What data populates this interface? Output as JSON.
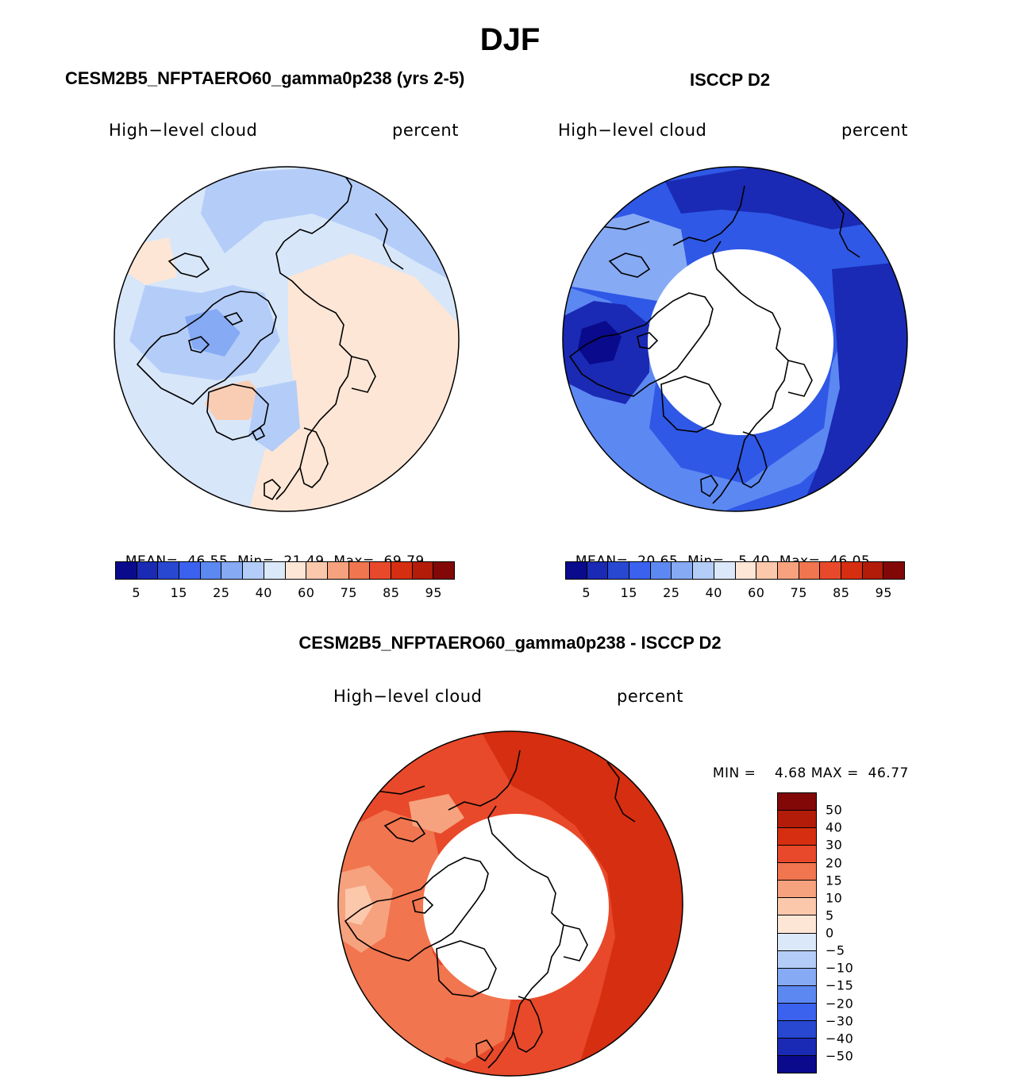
{
  "title": "DJF",
  "panels": {
    "model": {
      "heading": "CESM2B5_NFPTAERO60_gamma0p238 (yrs 2-5)",
      "variable": "High−level cloud",
      "units": "percent",
      "mean_label": "MEAN=",
      "mean": "46.55",
      "min_label": "Min=",
      "min": "21.49",
      "max_label": "Max=",
      "max": "69.79"
    },
    "obs": {
      "heading": "ISCCP D2",
      "variable": "High−level cloud",
      "units": "percent",
      "mean_label": "MEAN=",
      "mean": "20.65",
      "min_label": "Min=",
      "min": "5.40",
      "max_label": "Max=",
      "max": "46.05"
    },
    "diff": {
      "heading": "CESM2B5_NFPTAERO60_gamma0p238 - ISCCP D2",
      "variable": "High−level cloud",
      "units": "percent",
      "min_label": "MIN =",
      "min": "4.68",
      "max_label": "MAX =",
      "max": "46.77"
    }
  },
  "colorbar_abs": {
    "colors": [
      "#0a0a8c",
      "#1a2ab4",
      "#2848d2",
      "#3a62ee",
      "#5c88f2",
      "#86aaf4",
      "#b4cdf8",
      "#dbe8fa",
      "#fde6d6",
      "#fbc8ac",
      "#f6a27e",
      "#f1754e",
      "#e8492a",
      "#d62e10",
      "#b21c08",
      "#820808"
    ],
    "ticks": [
      "5",
      "15",
      "25",
      "40",
      "60",
      "75",
      "85",
      "95"
    ]
  },
  "colorbar_diff": {
    "colors": [
      "#820808",
      "#b21c08",
      "#d62e10",
      "#e8492a",
      "#f1754e",
      "#f6a27e",
      "#fbc8ac",
      "#fde6d6",
      "#dbe8fa",
      "#b4cdf8",
      "#86aaf4",
      "#5c88f2",
      "#3a62ee",
      "#2848d2",
      "#1a2ab4",
      "#0a0a8c"
    ],
    "ticks": [
      "50",
      "40",
      "30",
      "20",
      "15",
      "10",
      "5",
      "0",
      "−5",
      "−10",
      "−15",
      "−20",
      "−30",
      "−40",
      "−50"
    ]
  },
  "map_colors": {
    "model_base": "#d7e6f9",
    "model_warm": "#fde6d6",
    "model_warm2": "#f9cdb4",
    "model_cool": "#b4cdf8",
    "model_cool2": "#86aaf4",
    "obs_base": "#2f58e6",
    "obs_light": "#5c88f2",
    "obs_pale": "#86aaf4",
    "obs_dark": "#1a2ab4",
    "obs_darkest": "#0a0a8c",
    "diff_base": "#e8492a",
    "diff_dark": "#d62e10",
    "diff_light": "#f1754e",
    "diff_pale": "#f6a27e",
    "diff_palest": "#fbc8ac",
    "coast": "#000000"
  }
}
